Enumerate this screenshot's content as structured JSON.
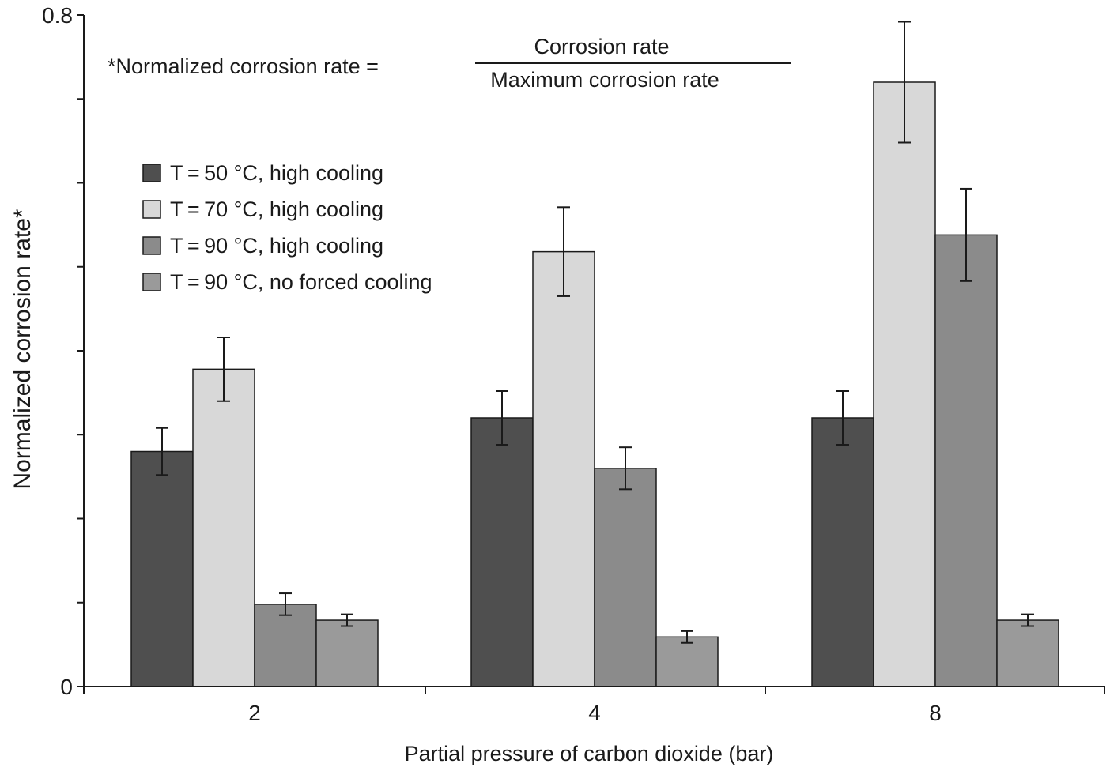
{
  "chart_data": {
    "type": "bar",
    "title": "",
    "xlabel": "Partial pressure of carbon dioxide (bar)",
    "ylabel": "Normalized corrosion rate*",
    "ylim": [
      0,
      0.8
    ],
    "y_tick_labels": [
      "0",
      "0.8"
    ],
    "y_tick_values": [
      0,
      0.1,
      0.2,
      0.3,
      0.4,
      0.5,
      0.6,
      0.7,
      0.8
    ],
    "categories": [
      "2",
      "4",
      "8"
    ],
    "legend_position": "upper-left",
    "series": [
      {
        "name": "T = 50 °C, high cooling",
        "color": "#4f4f4f",
        "values": [
          0.28,
          0.32,
          0.32
        ],
        "errors": [
          0.028,
          0.032,
          0.032
        ]
      },
      {
        "name": "T = 70 °C, high cooling",
        "color": "#d8d8d8",
        "values": [
          0.378,
          0.518,
          0.72
        ],
        "errors": [
          0.038,
          0.053,
          0.072
        ]
      },
      {
        "name": "T = 90 °C, high cooling",
        "color": "#8b8b8b",
        "values": [
          0.098,
          0.26,
          0.538
        ],
        "errors": [
          0.013,
          0.025,
          0.055
        ]
      },
      {
        "name": "T = 90 °C, no forced cooling",
        "color": "#9a9a9a",
        "values": [
          0.079,
          0.059,
          0.079
        ],
        "errors": [
          0.007,
          0.007,
          0.007
        ]
      }
    ],
    "annotation": {
      "label": "*Normalized corrosion rate =",
      "numerator": "Corrosion rate",
      "denominator": "Maximum corrosion rate"
    }
  }
}
